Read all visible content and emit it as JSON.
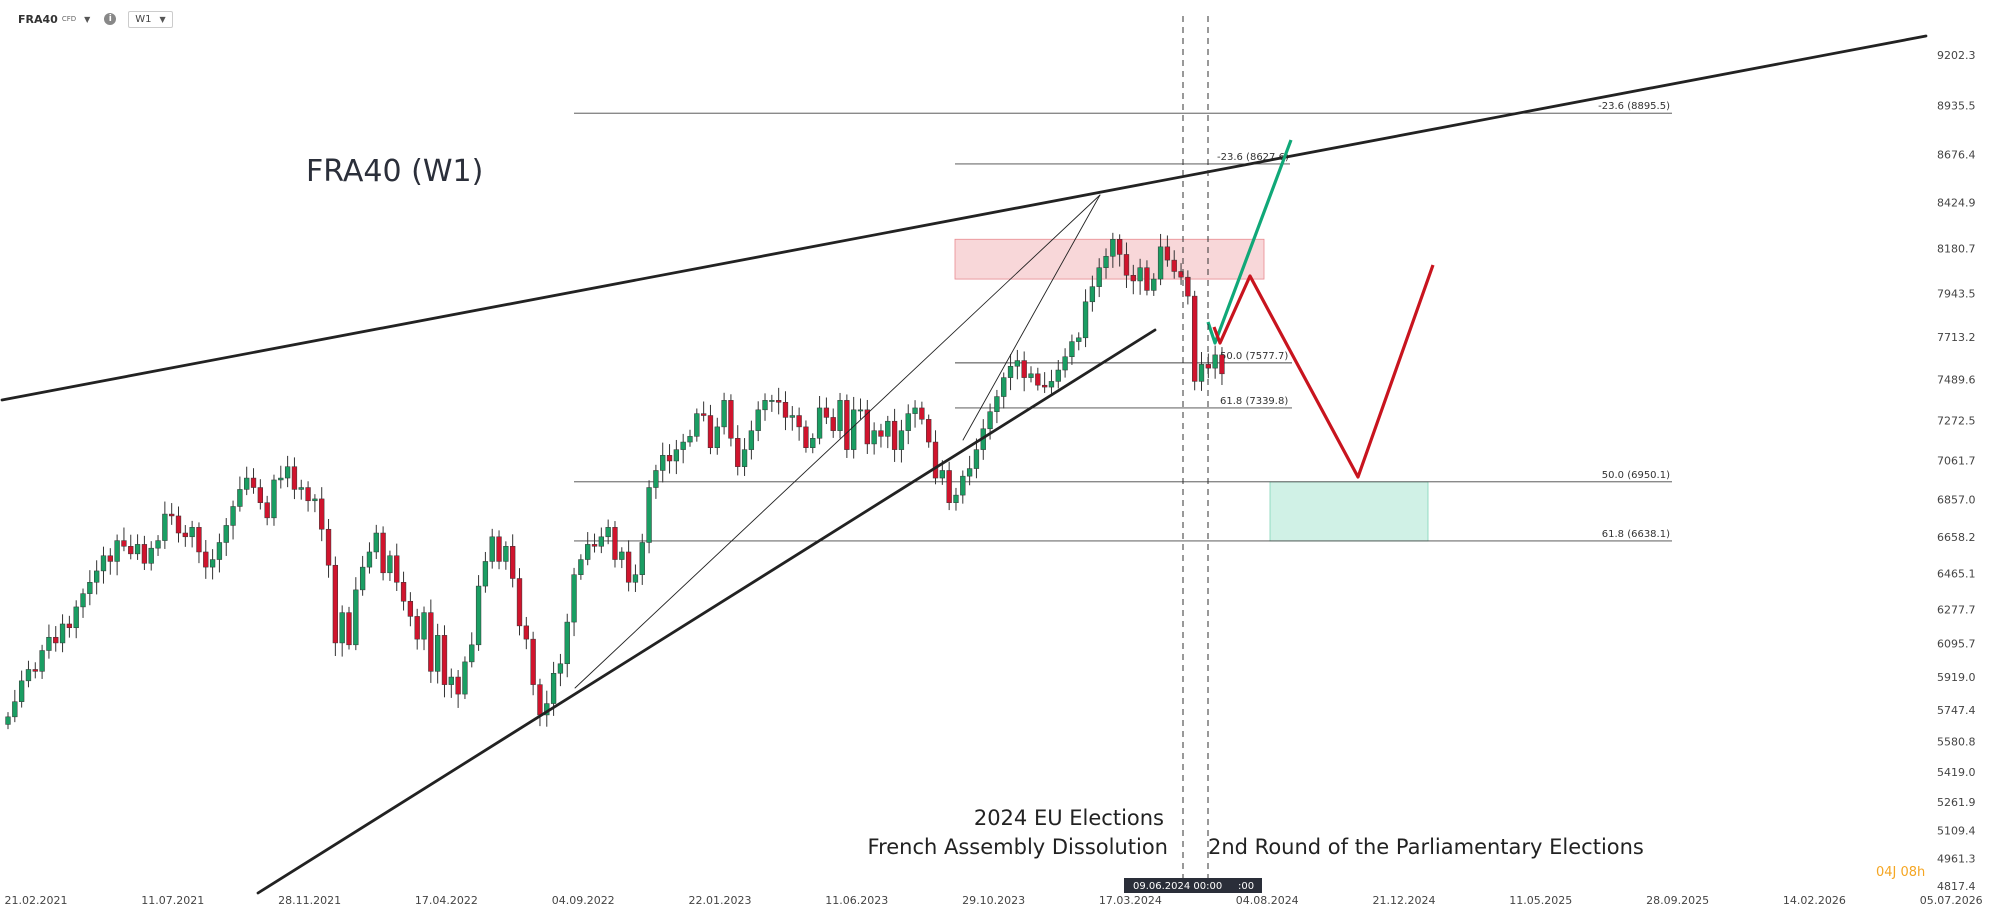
{
  "toolbar": {
    "symbol": "FRA40",
    "instrument_type": "CFD",
    "timeframe": "W1",
    "dropdown_icon": "caret-down-icon",
    "info_icon": "info-icon"
  },
  "brand_badge": "04J 08h",
  "colors": {
    "bull": "#1a9e63",
    "bear": "#d0142d",
    "trend": "#222222",
    "green_path": "#10a878",
    "red_path": "#c8141e",
    "resistance_zone": "#f6c9cc",
    "support_zone": "#c8efe2"
  },
  "chart_data": {
    "type": "candlestick",
    "title": "FRA40 (W1)",
    "ylim": [
      4817.4,
      9202.3
    ],
    "y_ticks": [
      "9202.3",
      "8935.5",
      "8676.4",
      "8424.9",
      "8180.7",
      "7943.5",
      "7713.2",
      "7489.6",
      "7272.5",
      "7061.7",
      "6857.0",
      "6658.2",
      "6465.1",
      "6277.7",
      "6095.7",
      "5919.0",
      "5747.4",
      "5580.8",
      "5419.0",
      "5261.9",
      "5109.4",
      "4961.3",
      "4817.4"
    ],
    "x_ticks": [
      "21.02.2021",
      "11.07.2021",
      "28.11.2021",
      "17.04.2022",
      "04.09.2022",
      "22.01.2023",
      "11.06.2023",
      "29.10.2023",
      "17.03.2024",
      "04.08.2024",
      "21.12.2024",
      "11.05.2025",
      "28.09.2025",
      "14.02.2026",
      "05.07.2026"
    ],
    "crosshair_date": "09.06.2024 00:00",
    "crosshair_time_fragment": ":00",
    "fib_levels": [
      {
        "label": "-23.6 (8895.5)",
        "value": 8895.5
      },
      {
        "label": "-23.6 (8627.6)",
        "value": 8627.6
      },
      {
        "label": "50.0 (7577.7)",
        "value": 7577.7
      },
      {
        "label": "61.8 (7339.8)",
        "value": 7339.8
      },
      {
        "label": "50.0 (6950.1)",
        "value": 6950.1
      },
      {
        "label": "61.8 (6638.1)",
        "value": 6638.1
      }
    ],
    "annotations": [
      "2024 EU Elections",
      "French Assembly Dissolution",
      "2nd Round of the Parliamentary Elections"
    ],
    "zones": [
      {
        "name": "resistance",
        "top": 8230,
        "bottom": 8020
      },
      {
        "name": "support",
        "top": 6950.1,
        "bottom": 6638.1
      }
    ],
    "closes": [
      5710,
      5790,
      5900,
      5960,
      5950,
      6060,
      6130,
      6100,
      6200,
      6180,
      6290,
      6360,
      6420,
      6480,
      6560,
      6530,
      6640,
      6610,
      6570,
      6620,
      6520,
      6600,
      6640,
      6780,
      6770,
      6680,
      6660,
      6710,
      6580,
      6500,
      6540,
      6630,
      6720,
      6820,
      6910,
      6970,
      6920,
      6840,
      6760,
      6960,
      6970,
      7030,
      6910,
      6920,
      6850,
      6860,
      6700,
      6510,
      6100,
      6260,
      6090,
      6380,
      6500,
      6580,
      6680,
      6470,
      6560,
      6420,
      6320,
      6240,
      6120,
      6260,
      5950,
      6140,
      5880,
      5920,
      5830,
      6000,
      6090,
      6400,
      6530,
      6660,
      6530,
      6610,
      6440,
      6190,
      6120,
      5880,
      5720,
      5780,
      5940,
      5990,
      6210,
      6460,
      6540,
      6620,
      6610,
      6660,
      6710,
      6540,
      6580,
      6420,
      6460,
      6630,
      6920,
      7010,
      7090,
      7060,
      7120,
      7160,
      7190,
      7310,
      7300,
      7130,
      7240,
      7380,
      7180,
      7030,
      7120,
      7220,
      7330,
      7380,
      7380,
      7370,
      7290,
      7300,
      7240,
      7130,
      7180,
      7340,
      7290,
      7220,
      7380,
      7120,
      7330,
      7330,
      7150,
      7220,
      7190,
      7270,
      7120,
      7220,
      7310,
      7340,
      7280,
      7160,
      6970,
      7010,
      6840,
      6880,
      6980,
      7020,
      7120,
      7230,
      7320,
      7400,
      7500,
      7560,
      7590,
      7500,
      7520,
      7460,
      7450,
      7480,
      7540,
      7610,
      7690,
      7710,
      7900,
      7980,
      8080,
      8140,
      8230,
      8150,
      8040,
      8010,
      8080,
      7960,
      8020,
      8190,
      8120,
      8060,
      8030,
      7930,
      7480,
      7570,
      7550,
      7620,
      7520
    ]
  }
}
